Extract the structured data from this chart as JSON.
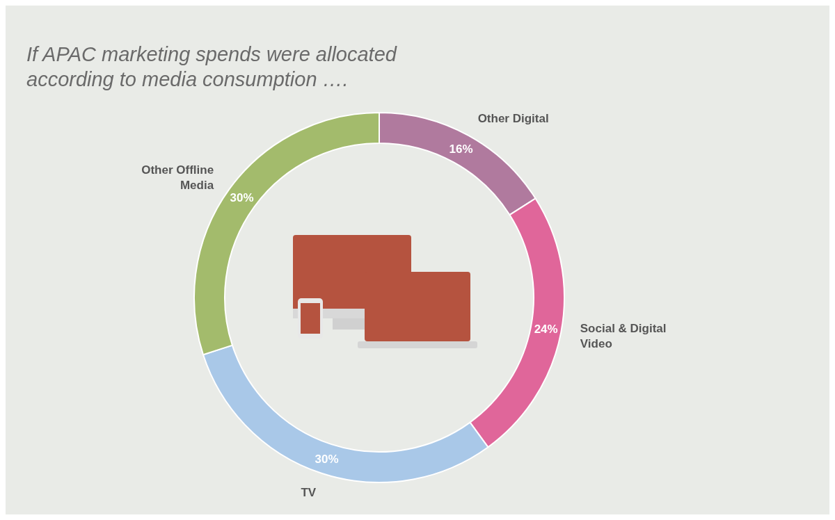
{
  "chart_data": {
    "type": "donut",
    "title": "If APAC marketing spends were allocated according to media consumption ….",
    "categories": [
      "Other Digital",
      "Social & Digital Video",
      "TV",
      "Other Offline Media"
    ],
    "values": [
      16,
      24,
      30,
      30
    ],
    "colors": [
      "#b07a9e",
      "#e0669a",
      "#a9c8e8",
      "#a3bb6c"
    ],
    "value_labels": [
      "16%",
      "24%",
      "30%",
      "30%"
    ]
  }
}
